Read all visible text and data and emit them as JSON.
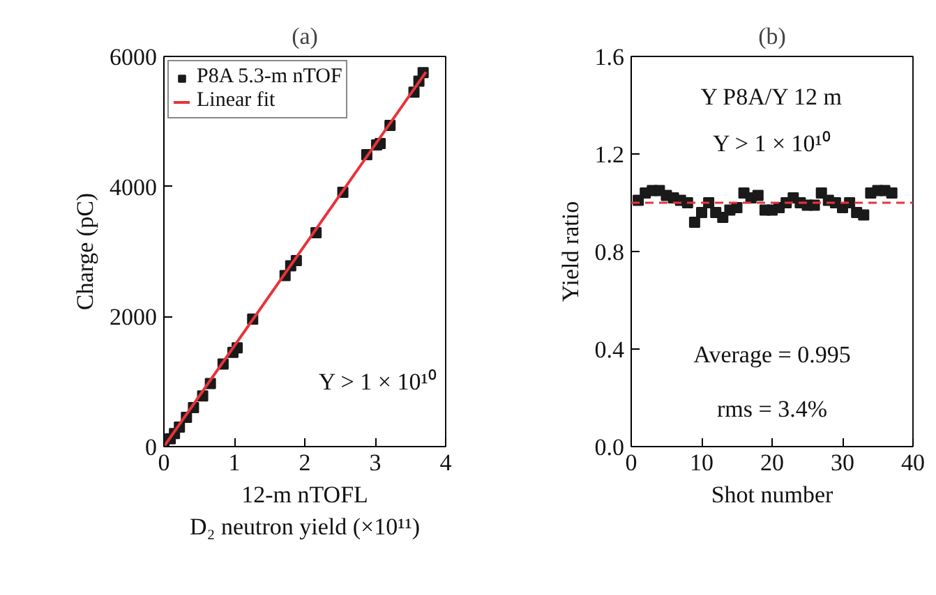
{
  "chart_data": [
    {
      "type": "scatter",
      "title": "(a)",
      "xlabel": "12-m nTOFL\nD₂ neutron yield (×10¹¹)",
      "ylabel": "Charge (pC)",
      "series": [
        {
          "name": "P8A 5.3-m nTOF",
          "marker": "square",
          "color": "#1a1a1a",
          "x": [
            0,
            0.09,
            0.15,
            0.22,
            0.32,
            0.42,
            0.55,
            0.66,
            0.84,
            0.98,
            1.04,
            1.26,
            1.72,
            1.8,
            1.88,
            2.16,
            2.54,
            2.88,
            3.02,
            3.07,
            3.21,
            3.55,
            3.62,
            3.68
          ],
          "values": [
            0,
            120,
            200,
            300,
            450,
            600,
            780,
            970,
            1270,
            1450,
            1520,
            1960,
            2630,
            2780,
            2860,
            3290,
            3910,
            4490,
            4640,
            4660,
            4940,
            5450,
            5620,
            5750
          ]
        },
        {
          "name": "Linear fit",
          "type": "line",
          "color": "#e8333a",
          "x": [
            0,
            3.72
          ],
          "values": [
            0,
            5760
          ]
        }
      ],
      "line_style": "solid",
      "legend": "top left",
      "grid": false,
      "xlim": [
        0,
        4
      ],
      "xticks": [
        0,
        1,
        2,
        3,
        4
      ],
      "ylim": [
        0,
        6000
      ],
      "yticks": [
        0,
        2000,
        4000,
        6000
      ],
      "annotations": [
        "Y > 1 × 10¹⁰"
      ]
    },
    {
      "type": "scatter",
      "title": "(b)",
      "xlabel": "Shot number",
      "ylabel": "Yield ratio",
      "series": [
        {
          "color": "#1a1a1a",
          "x": [
            1,
            2,
            3,
            4,
            5,
            6,
            7,
            8,
            9,
            10,
            11,
            12,
            13,
            14,
            15,
            16,
            17,
            18,
            19,
            20,
            21,
            22,
            23,
            24,
            25,
            26,
            27,
            28,
            29,
            30,
            31,
            32,
            33,
            34,
            35,
            36,
            37
          ],
          "values": [
            1.01,
            1.04,
            1.05,
            1.05,
            1.03,
            1.02,
            1.01,
            1.0,
            0.92,
            0.96,
            1.0,
            0.96,
            0.94,
            0.97,
            0.98,
            1.04,
            1.02,
            1.03,
            0.97,
            0.97,
            0.98,
            1.0,
            1.02,
            1.0,
            0.99,
            0.99,
            1.04,
            1.01,
            1.0,
            0.98,
            1.0,
            0.96,
            0.95,
            1.04,
            1.05,
            1.05,
            1.04
          ]
        }
      ],
      "marker": "square",
      "grid": false,
      "xlim": [
        0,
        40
      ],
      "xticks": [
        0,
        10,
        20,
        30,
        40
      ],
      "ylim": [
        0,
        1.6
      ],
      "yticks": [
        {
          "value": 0,
          "label": "0.0"
        },
        0.4,
        0.8,
        1.2,
        1.6
      ],
      "ref_lines": [
        {
          "axis": "y",
          "value": 1.0,
          "color": "#e8333a",
          "line_style": "dashed"
        }
      ],
      "annotations": [
        "Y P8A/Y 12 m",
        "Y > 1 × 10¹⁰",
        "Average = 0.995",
        "rms = 3.4%"
      ]
    }
  ]
}
